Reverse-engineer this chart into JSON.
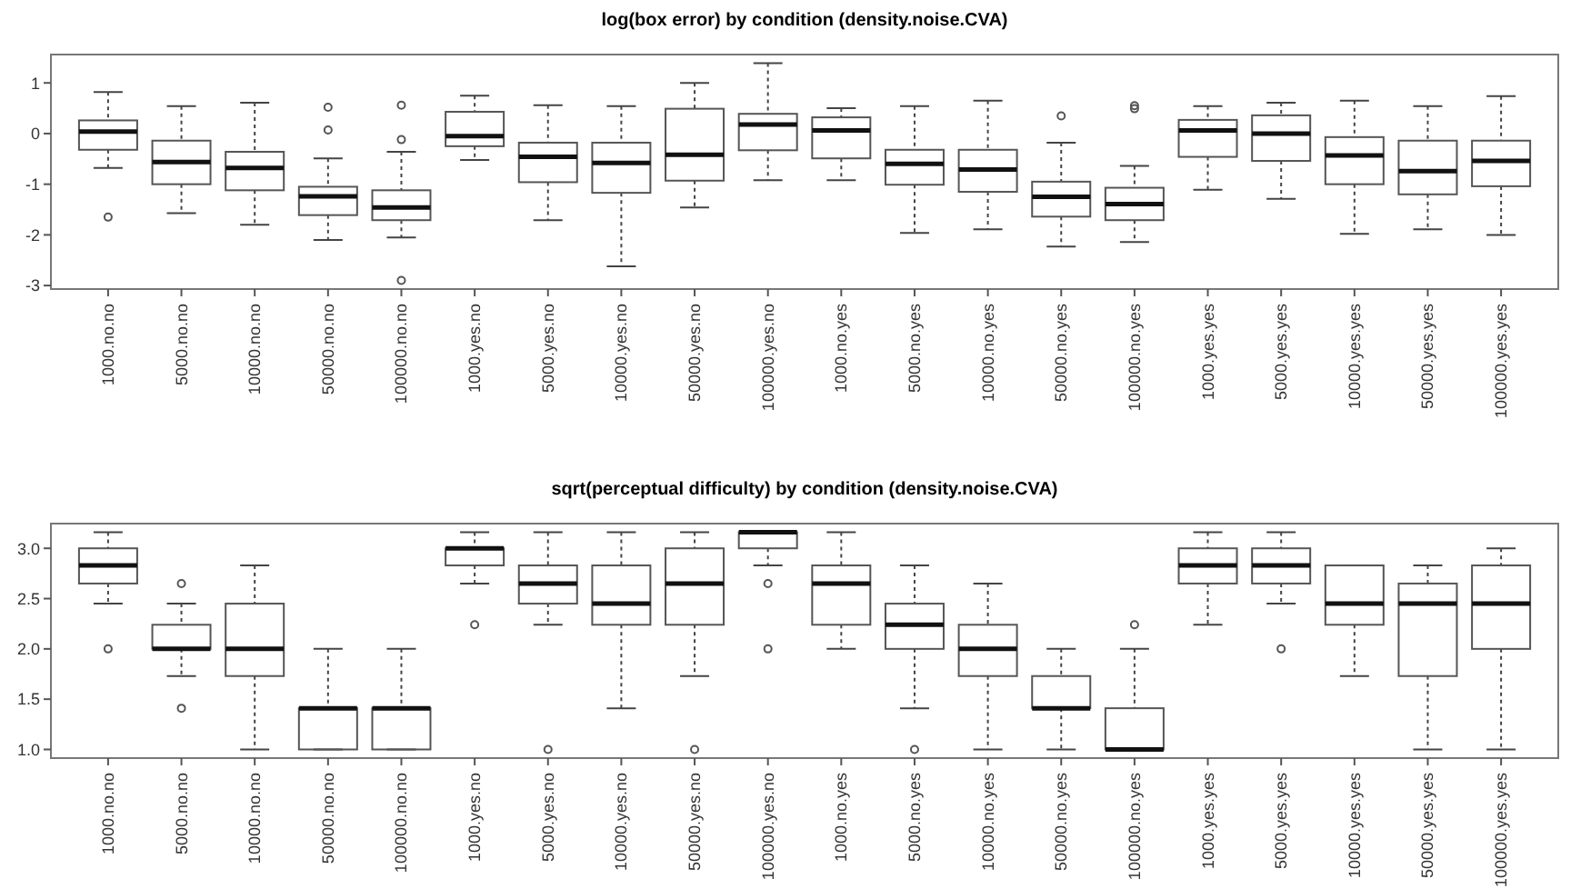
{
  "chart_data": [
    {
      "type": "box",
      "title": "log(box error) by condition (density.noise.CVA)",
      "categories": [
        "1000.no.no",
        "5000.no.no",
        "10000.no.no",
        "50000.no.no",
        "100000.no.no",
        "1000.yes.no",
        "5000.yes.no",
        "10000.yes.no",
        "50000.yes.no",
        "100000.yes.no",
        "1000.no.yes",
        "5000.no.yes",
        "10000.no.yes",
        "50000.no.yes",
        "100000.no.yes",
        "1000.yes.yes",
        "5000.yes.yes",
        "10000.yes.yes",
        "50000.yes.yes",
        "100000.yes.yes"
      ],
      "ylim": [
        -3.07,
        1.56
      ],
      "yticks": [
        -3,
        -2,
        -1,
        0,
        1
      ],
      "boxes": [
        {
          "low": -0.68,
          "q1": -0.32,
          "median": 0.04,
          "q3": 0.26,
          "high": 0.82,
          "outliers": [
            -1.65
          ]
        },
        {
          "low": -1.57,
          "q1": -1.0,
          "median": -0.56,
          "q3": -0.14,
          "high": 0.54
        },
        {
          "low": -1.8,
          "q1": -1.12,
          "median": -0.68,
          "q3": -0.36,
          "high": 0.61
        },
        {
          "low": -2.1,
          "q1": -1.61,
          "median": -1.24,
          "q3": -1.05,
          "high": -0.49,
          "outliers": [
            0.52,
            0.07
          ]
        },
        {
          "low": -2.05,
          "q1": -1.71,
          "median": -1.46,
          "q3": -1.12,
          "high": -0.36,
          "outliers": [
            0.56,
            -0.12,
            -2.9
          ]
        },
        {
          "low": -0.52,
          "q1": -0.25,
          "median": -0.05,
          "q3": 0.43,
          "high": 0.75
        },
        {
          "low": -1.71,
          "q1": -0.96,
          "median": -0.46,
          "q3": -0.18,
          "high": 0.56
        },
        {
          "low": -2.62,
          "q1": -1.17,
          "median": -0.58,
          "q3": -0.18,
          "high": 0.54
        },
        {
          "low": -1.46,
          "q1": -0.93,
          "median": -0.42,
          "q3": 0.49,
          "high": 1.0
        },
        {
          "low": -0.92,
          "q1": -0.33,
          "median": 0.18,
          "q3": 0.39,
          "high": 1.39
        },
        {
          "low": -0.92,
          "q1": -0.49,
          "median": 0.06,
          "q3": 0.32,
          "high": 0.5
        },
        {
          "low": -1.96,
          "q1": -1.01,
          "median": -0.6,
          "q3": -0.32,
          "high": 0.54
        },
        {
          "low": -1.89,
          "q1": -1.15,
          "median": -0.71,
          "q3": -0.32,
          "high": 0.65
        },
        {
          "low": -2.23,
          "q1": -1.64,
          "median": -1.25,
          "q3": -0.95,
          "high": -0.18,
          "outliers": [
            0.35
          ]
        },
        {
          "low": -2.14,
          "q1": -1.71,
          "median": -1.39,
          "q3": -1.07,
          "high": -0.64,
          "outliers": [
            0.55,
            0.49
          ]
        },
        {
          "low": -1.11,
          "q1": -0.46,
          "median": 0.06,
          "q3": 0.27,
          "high": 0.54
        },
        {
          "low": -1.29,
          "q1": -0.54,
          "median": 0,
          "q3": 0.36,
          "high": 0.61
        },
        {
          "low": -1.98,
          "q1": -1.0,
          "median": -0.43,
          "q3": -0.07,
          "high": 0.65
        },
        {
          "low": -1.89,
          "q1": -1.2,
          "median": -0.74,
          "q3": -0.14,
          "high": 0.54
        },
        {
          "low": -2.0,
          "q1": -1.04,
          "median": -0.54,
          "q3": -0.14,
          "high": 0.74
        }
      ]
    },
    {
      "type": "box",
      "title": "sqrt(perceptual difficulty) by condition (density.noise.CVA)",
      "categories": [
        "1000.no.no",
        "5000.no.no",
        "10000.no.no",
        "50000.no.no",
        "100000.no.no",
        "1000.yes.no",
        "5000.yes.no",
        "10000.yes.no",
        "50000.yes.no",
        "100000.yes.no",
        "1000.no.yes",
        "5000.no.yes",
        "10000.no.yes",
        "50000.no.yes",
        "100000.no.yes",
        "1000.yes.yes",
        "5000.yes.yes",
        "10000.yes.yes",
        "50000.yes.yes",
        "100000.yes.yes"
      ],
      "ylim": [
        0.914,
        3.246
      ],
      "yticks": [
        {
          "value": 1,
          "label": "1.0"
        },
        {
          "value": 1.5,
          "label": "1.5"
        },
        {
          "value": 2,
          "label": "2.0"
        },
        {
          "value": 2.5,
          "label": "2.5"
        },
        {
          "value": 3,
          "label": "3.0"
        }
      ],
      "boxes": [
        {
          "low": 2.45,
          "q1": 2.65,
          "median": 2.83,
          "q3": 3.0,
          "high": 3.16,
          "outliers": [
            2.0
          ]
        },
        {
          "low": 1.73,
          "q1": 2.0,
          "median": 2.0,
          "q3": 2.24,
          "high": 2.45,
          "outliers": [
            2.65,
            1.41
          ]
        },
        {
          "low": 1.0,
          "q1": 1.73,
          "median": 2.0,
          "q3": 2.45,
          "high": 2.83
        },
        {
          "low": 1.0,
          "q1": 1.0,
          "median": 1.41,
          "q3": 1.41,
          "high": 2.0
        },
        {
          "low": 1.0,
          "q1": 1.0,
          "median": 1.41,
          "q3": 1.41,
          "high": 2.0
        },
        {
          "low": 2.65,
          "q1": 2.83,
          "median": 3.0,
          "q3": 3.0,
          "high": 3.16,
          "outliers": [
            2.24
          ]
        },
        {
          "low": 2.24,
          "q1": 2.45,
          "median": 2.65,
          "q3": 2.83,
          "high": 3.16,
          "outliers": [
            1.0
          ]
        },
        {
          "low": 1.41,
          "q1": 2.24,
          "median": 2.45,
          "q3": 2.83,
          "high": 3.16
        },
        {
          "low": 1.73,
          "q1": 2.24,
          "median": 2.65,
          "q3": 3.0,
          "high": 3.16,
          "outliers": [
            1.0
          ]
        },
        {
          "low": 2.83,
          "q1": 3.0,
          "median": 3.16,
          "q3": 3.16,
          "high": 3.16,
          "outliers": [
            2.65,
            2.0
          ]
        },
        {
          "low": 2.0,
          "q1": 2.24,
          "median": 2.65,
          "q3": 2.83,
          "high": 3.16
        },
        {
          "low": 1.41,
          "q1": 2.0,
          "median": 2.24,
          "q3": 2.45,
          "high": 2.83,
          "outliers": [
            1.0
          ]
        },
        {
          "low": 1.0,
          "q1": 1.73,
          "median": 2.0,
          "q3": 2.24,
          "high": 2.65
        },
        {
          "low": 1.0,
          "q1": 1.41,
          "median": 1.41,
          "q3": 1.73,
          "high": 2.0
        },
        {
          "low": 1.0,
          "q1": 1.0,
          "median": 1.0,
          "q3": 1.41,
          "high": 2.0,
          "outliers": [
            2.24
          ]
        },
        {
          "low": 2.24,
          "q1": 2.65,
          "median": 2.83,
          "q3": 3.0,
          "high": 3.16
        },
        {
          "low": 2.45,
          "q1": 2.65,
          "median": 2.83,
          "q3": 3.0,
          "high": 3.16,
          "outliers": [
            2.0
          ]
        },
        {
          "low": 1.73,
          "q1": 2.24,
          "median": 2.45,
          "q3": 2.83,
          "high": 2.83
        },
        {
          "low": 1.0,
          "q1": 1.73,
          "median": 2.45,
          "q3": 2.65,
          "high": 2.83
        },
        {
          "low": 1.0,
          "q1": 2.0,
          "median": 2.45,
          "q3": 2.83,
          "high": 3.0
        }
      ]
    }
  ]
}
